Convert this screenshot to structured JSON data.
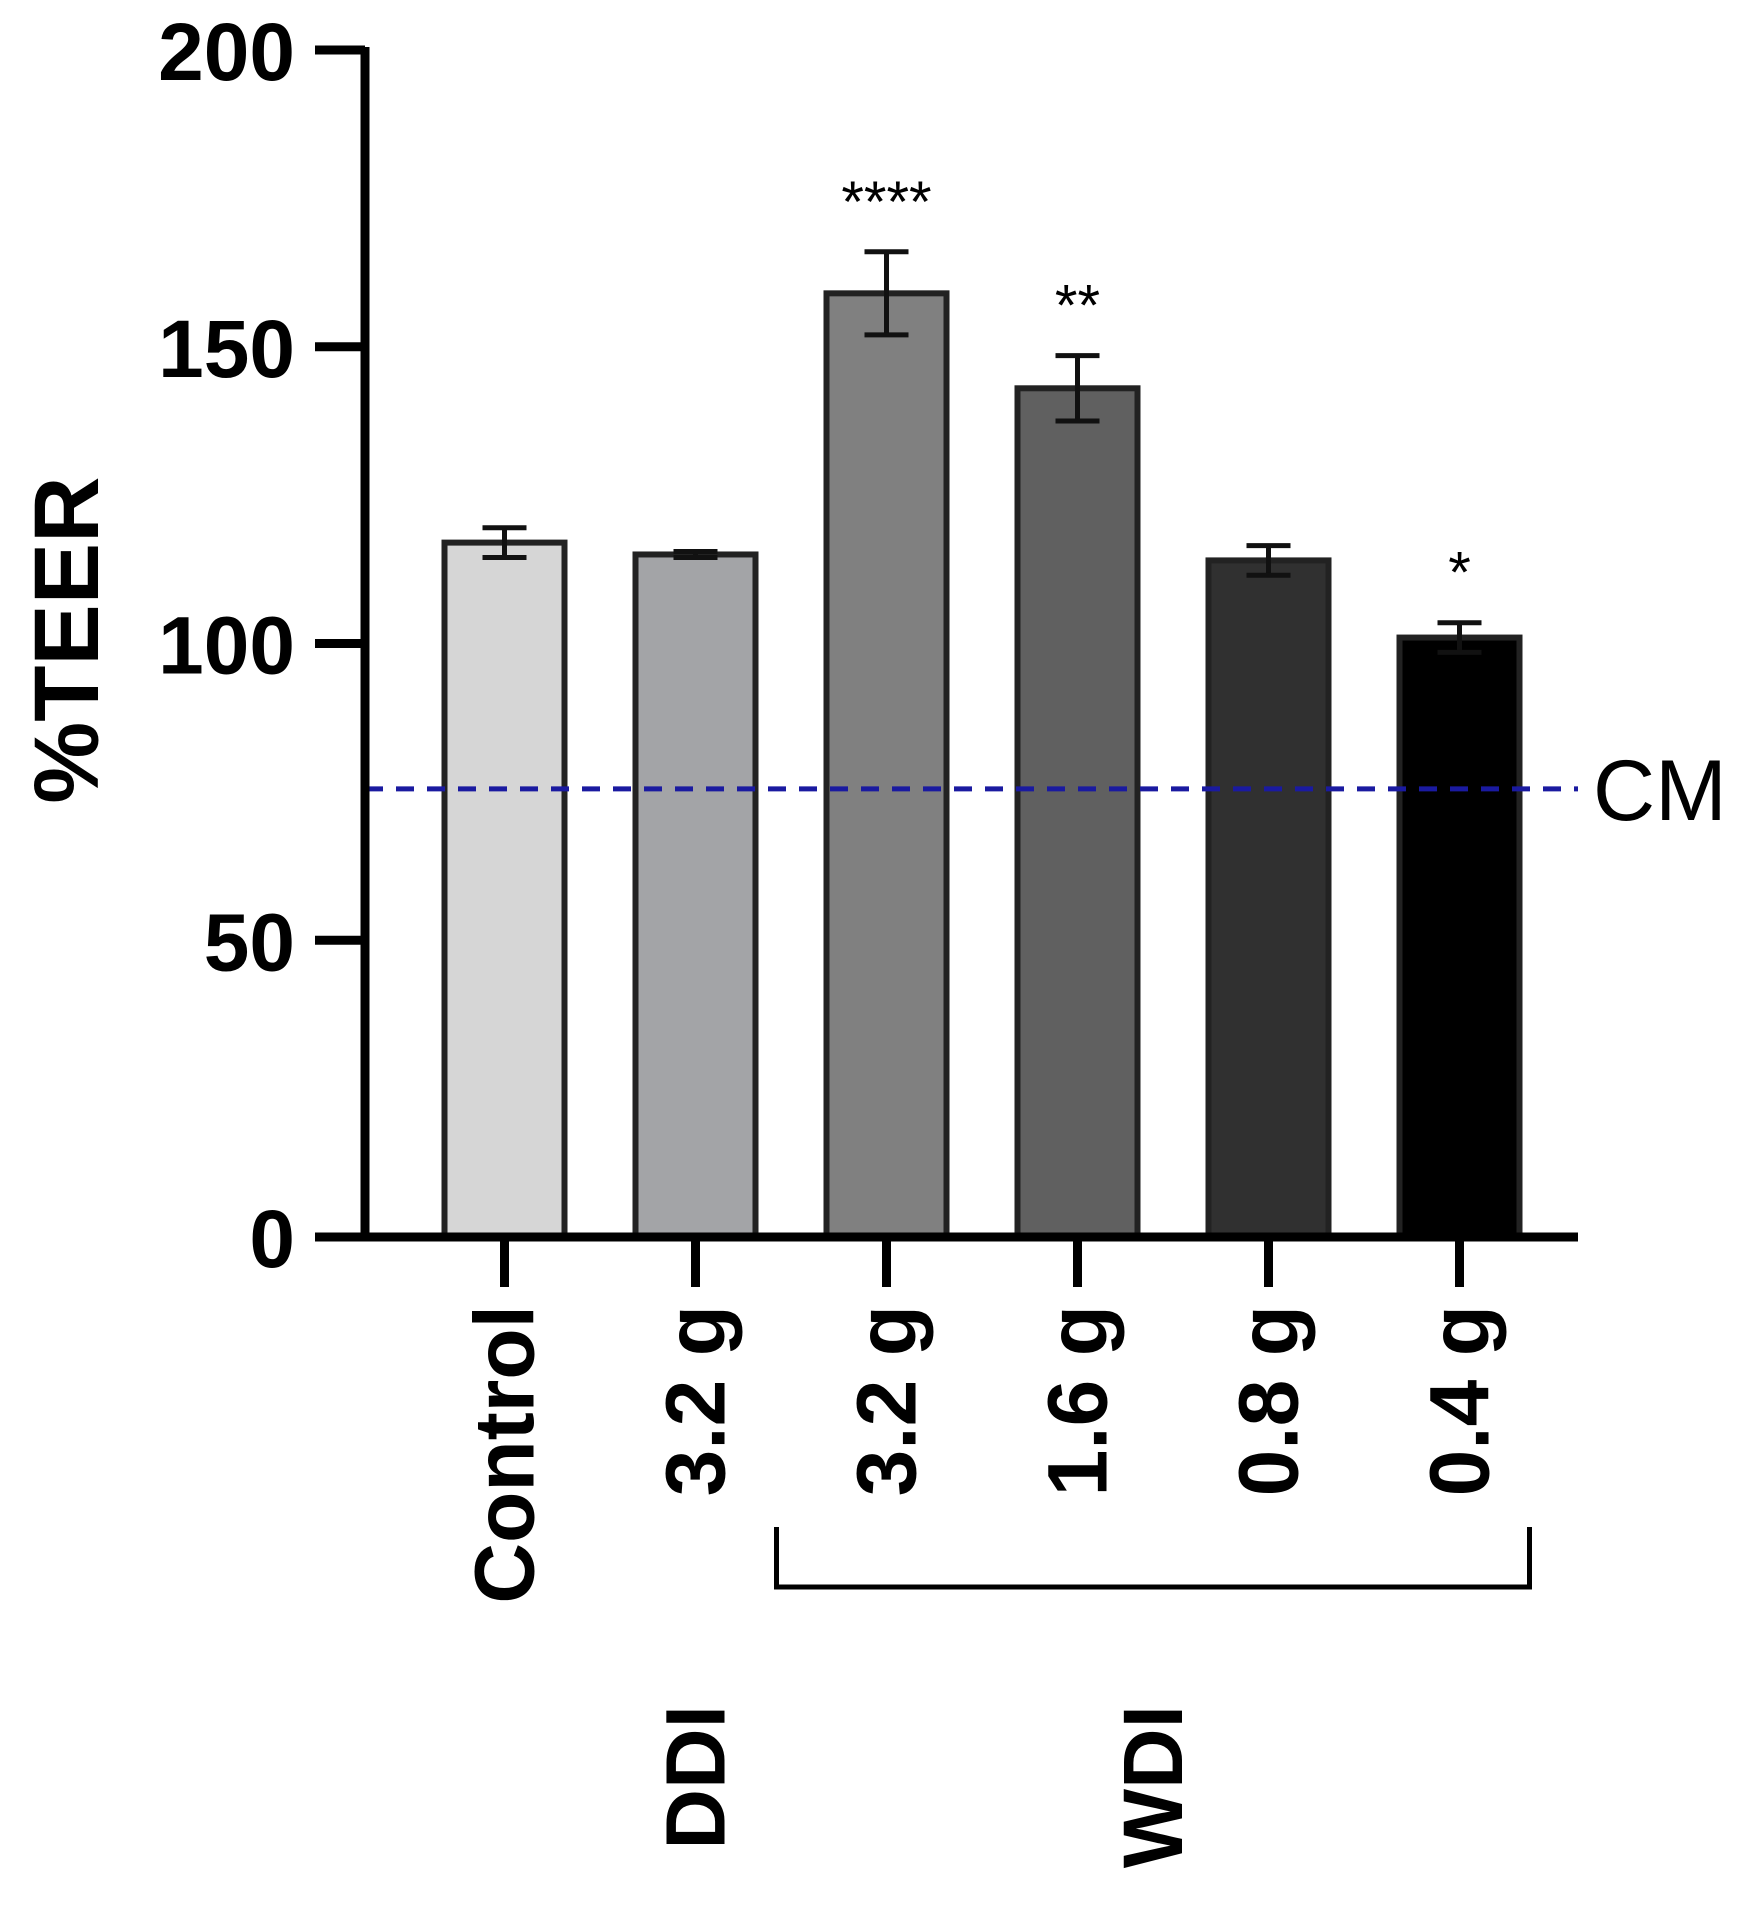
{
  "chart_data": {
    "type": "bar",
    "ylabel": "%TEER",
    "ylim": [
      0,
      200
    ],
    "yticks": [
      "0",
      "50",
      "100",
      "150",
      "200"
    ],
    "categories": [
      "Control",
      "3.2 g",
      "3.2 g",
      "1.6 g",
      "0.8 g",
      "0.4 g"
    ],
    "values": [
      117,
      115,
      159,
      143,
      114,
      101
    ],
    "errors": [
      2.5,
      0.5,
      7,
      5.5,
      2.5,
      2.5
    ],
    "significance": [
      "",
      "",
      "****",
      "**",
      "",
      "*"
    ],
    "colors": [
      "#d6d6d6",
      "#a3a4a7",
      "#808080",
      "#606060",
      "#303030",
      "#000000"
    ],
    "reference_line": {
      "label": "CM",
      "value": 75.5,
      "color": "#1a1aa0",
      "style": "dashed"
    },
    "groups": [
      {
        "label": "DDI",
        "categories": [
          1
        ]
      },
      {
        "label": "WDI",
        "categories": [
          2,
          3,
          4,
          5
        ],
        "bracket": true
      }
    ],
    "grid": false,
    "legend": "none"
  }
}
